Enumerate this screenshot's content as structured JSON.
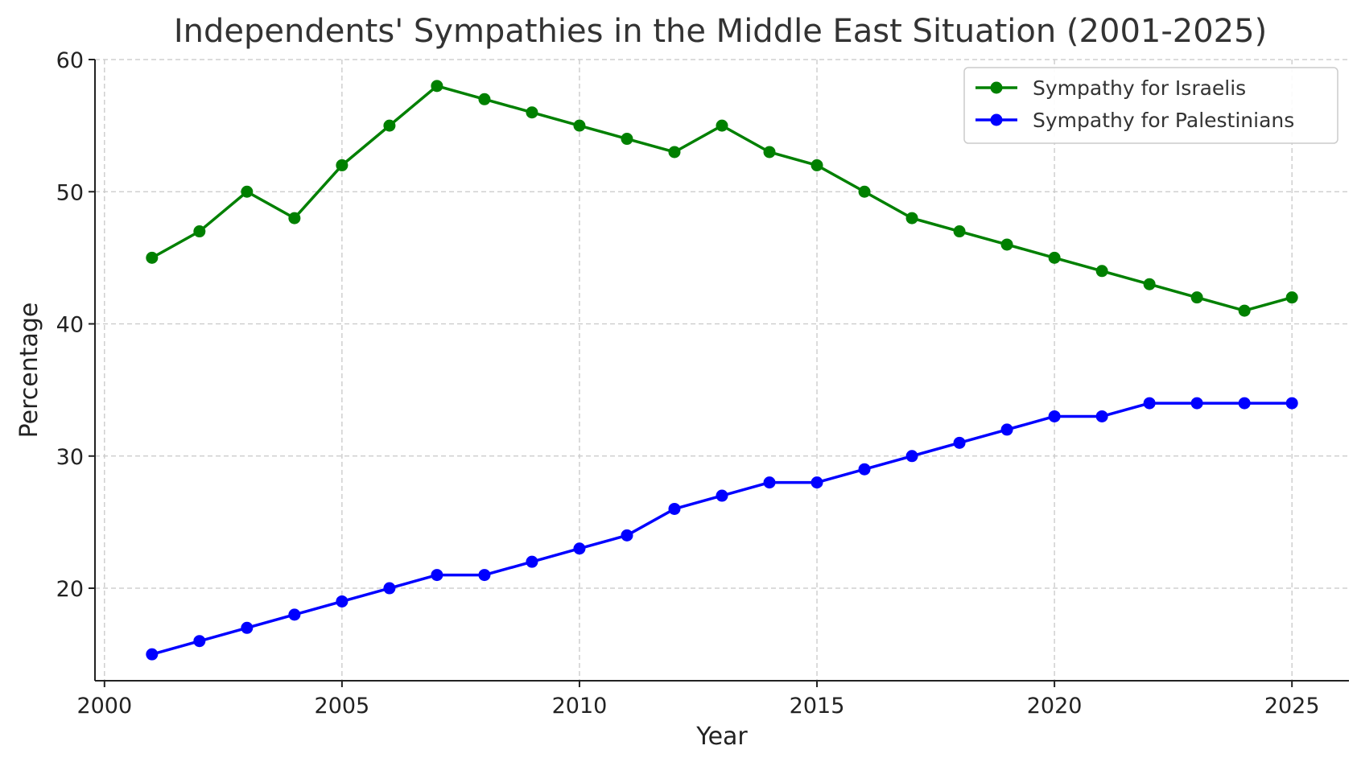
{
  "chart_data": {
    "type": "line",
    "title": "Independents' Sympathies in the Middle East Situation (2001-2025)",
    "xlabel": "Year",
    "ylabel": "Percentage",
    "x": [
      2001,
      2002,
      2003,
      2004,
      2005,
      2006,
      2007,
      2008,
      2009,
      2010,
      2011,
      2012,
      2013,
      2014,
      2015,
      2016,
      2017,
      2018,
      2019,
      2020,
      2021,
      2022,
      2023,
      2024,
      2025
    ],
    "series": [
      {
        "name": "Sympathy for Israelis",
        "color": "#008000",
        "values": [
          45,
          47,
          50,
          48,
          52,
          55,
          58,
          57,
          56,
          55,
          54,
          53,
          55,
          53,
          52,
          50,
          48,
          47,
          46,
          45,
          44,
          43,
          42,
          41,
          42
        ]
      },
      {
        "name": "Sympathy for Palestinians",
        "color": "#0000ff",
        "values": [
          15,
          16,
          17,
          18,
          19,
          20,
          21,
          21,
          22,
          23,
          24,
          26,
          27,
          28,
          28,
          29,
          30,
          31,
          32,
          33,
          33,
          34,
          34,
          34,
          34
        ]
      }
    ],
    "xlim": [
      1999.8,
      2026.2
    ],
    "ylim": [
      13.0,
      60.0
    ],
    "xticks": [
      2000,
      2005,
      2010,
      2015,
      2020,
      2025
    ],
    "yticks": [
      20,
      30,
      40,
      50,
      60
    ],
    "grid": true,
    "legend_position": "top-right"
  }
}
